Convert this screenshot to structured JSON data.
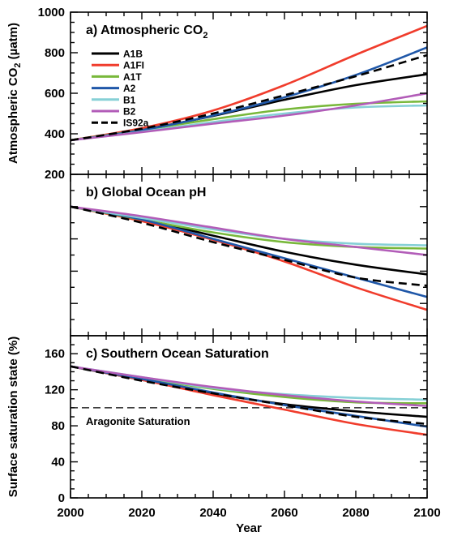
{
  "x_axis": {
    "label": "Year",
    "range": [
      2000,
      2100
    ],
    "ticks": [
      2000,
      2020,
      2040,
      2060,
      2080,
      2100
    ],
    "tick_labels": [
      "2000",
      "2020",
      "2040",
      "2060",
      "2080",
      "2100"
    ]
  },
  "legend": {
    "placement": "top-left of panel a",
    "entries": [
      {
        "name": "A1B",
        "color": "#000000",
        "dash": false
      },
      {
        "name": "A1FI",
        "color": "#f03c2c",
        "dash": false
      },
      {
        "name": "A1T",
        "color": "#78b83a",
        "dash": false
      },
      {
        "name": "A2",
        "color": "#1f57a8",
        "dash": false
      },
      {
        "name": "B1",
        "color": "#86d0d6",
        "dash": false
      },
      {
        "name": "B2",
        "color": "#b25cb8",
        "dash": false
      },
      {
        "name": "IS92a",
        "color": "#000000",
        "dash": true
      }
    ]
  },
  "chart_data": [
    {
      "type": "line",
      "title": "a) Atmospheric CO",
      "title_subscript": "2",
      "ylabel": "Atmospheric CO",
      "ylabel_subscript": "2",
      "ylabel_unit": " (µatm)",
      "ylim": [
        200,
        1000
      ],
      "yticks": [
        200,
        400,
        600,
        800,
        1000
      ],
      "ytick_labels": [
        "200",
        "400",
        "600",
        "800",
        "1000"
      ],
      "x": [
        2000,
        2020,
        2040,
        2060,
        2080,
        2100
      ],
      "series": [
        {
          "name": "A1B",
          "values": [
            368,
            420,
            488,
            568,
            640,
            694
          ]
        },
        {
          "name": "A1FI",
          "values": [
            368,
            428,
            515,
            640,
            790,
            932
          ]
        },
        {
          "name": "A1T",
          "values": [
            368,
            418,
            472,
            520,
            548,
            560
          ]
        },
        {
          "name": "A2",
          "values": [
            368,
            418,
            490,
            580,
            690,
            826
          ]
        },
        {
          "name": "B1",
          "values": [
            368,
            410,
            458,
            500,
            530,
            540
          ]
        },
        {
          "name": "B2",
          "values": [
            368,
            408,
            450,
            490,
            540,
            600
          ]
        },
        {
          "name": "IS92a",
          "values": [
            368,
            425,
            500,
            590,
            684,
            788
          ]
        }
      ]
    },
    {
      "type": "line",
      "title": "b) Global Ocean pH",
      "ylabel": "",
      "ylim": [
        7.7,
        8.2
      ],
      "yticks": [],
      "ytick_labels": [],
      "x": [
        2000,
        2020,
        2040,
        2060,
        2080,
        2100
      ],
      "series": [
        {
          "name": "A1B",
          "values": [
            8.1,
            8.06,
            8.01,
            7.96,
            7.92,
            7.89
          ]
        },
        {
          "name": "A1FI",
          "values": [
            8.1,
            8.055,
            7.997,
            7.93,
            7.85,
            7.78
          ]
        },
        {
          "name": "A1T",
          "values": [
            8.1,
            8.06,
            8.02,
            7.99,
            7.975,
            7.97
          ]
        },
        {
          "name": "A2",
          "values": [
            8.1,
            8.06,
            8.0,
            7.94,
            7.88,
            7.82
          ]
        },
        {
          "name": "B1",
          "values": [
            8.1,
            8.065,
            8.03,
            8.0,
            7.985,
            7.98
          ]
        },
        {
          "name": "B2",
          "values": [
            8.1,
            8.07,
            8.035,
            8.0,
            7.975,
            7.95
          ]
        },
        {
          "name": "IS92a",
          "values": [
            8.1,
            8.05,
            7.99,
            7.935,
            7.88,
            7.855
          ]
        }
      ]
    },
    {
      "type": "line",
      "title": "c) Southern Ocean Saturation",
      "ylabel": "Surface saturation state (%)",
      "ylim": [
        0,
        180
      ],
      "yticks": [
        0,
        40,
        80,
        120,
        160
      ],
      "ytick_labels": [
        "0",
        "40",
        "80",
        "120",
        "160"
      ],
      "annotation": "Aragonite Saturation",
      "reference_value": 100,
      "x": [
        2000,
        2020,
        2040,
        2060,
        2080,
        2100
      ],
      "series": [
        {
          "name": "A1B",
          "values": [
            146,
            131,
            116,
            104,
            96,
            90
          ]
        },
        {
          "name": "A1FI",
          "values": [
            146,
            131,
            114,
            98,
            82,
            70
          ]
        },
        {
          "name": "A1T",
          "values": [
            146,
            133,
            121,
            112,
            106,
            105
          ]
        },
        {
          "name": "A2",
          "values": [
            146,
            132,
            117,
            103,
            91,
            79
          ]
        },
        {
          "name": "B1",
          "values": [
            146,
            134,
            122,
            115,
            111,
            109
          ]
        },
        {
          "name": "B2",
          "values": [
            146,
            134,
            123,
            114,
            107,
            102
          ]
        },
        {
          "name": "IS92a",
          "values": [
            146,
            130,
            116,
            103,
            90,
            82
          ]
        }
      ]
    }
  ]
}
